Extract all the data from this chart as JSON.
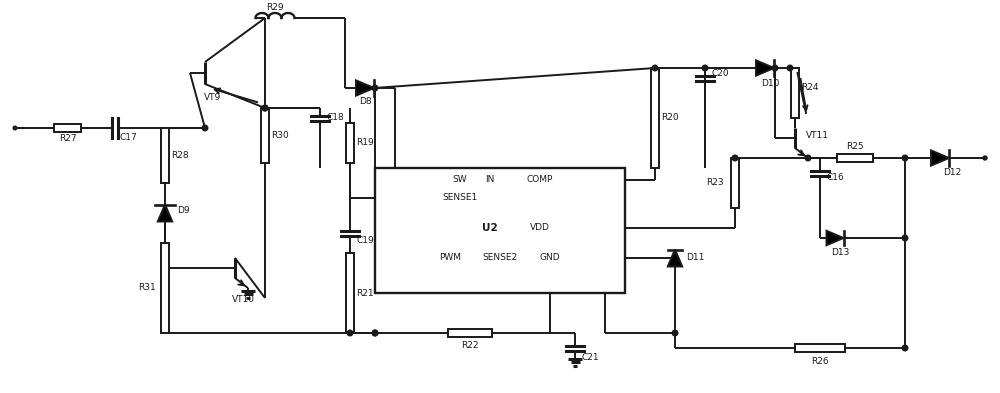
{
  "bg_color": "#ffffff",
  "line_color": "#1a1a1a",
  "lw": 1.4,
  "figsize": [
    10.0,
    3.93
  ],
  "dpi": 100,
  "xlim": [
    0,
    100
  ],
  "ylim": [
    0,
    39.3
  ]
}
